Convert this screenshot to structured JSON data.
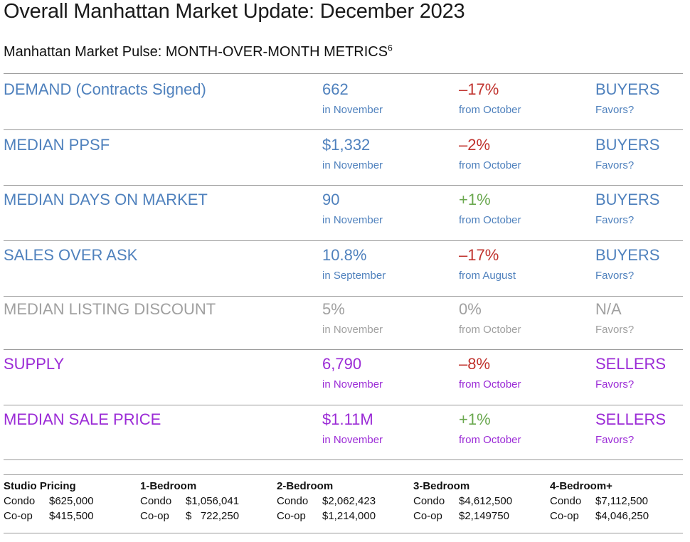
{
  "title": "Overall Manhattan Market Update: December 2023",
  "subtitle": {
    "text": "Manhattan Market Pulse: MONTH-OVER-MONTH METRICS",
    "footnote": "6"
  },
  "metrics": [
    {
      "label": "DEMAND (Contracts Signed)",
      "value": "662",
      "value_sub": "in November",
      "change": "–17%",
      "change_sub": "from October",
      "favors": "BUYERS",
      "favors_sub": "Favors?"
    },
    {
      "label": "MEDIAN PPSF",
      "value": "$1,332",
      "value_sub": "in November",
      "change": "–2%",
      "change_sub": "from October",
      "favors": "BUYERS",
      "favors_sub": "Favors?"
    },
    {
      "label": "MEDIAN DAYS ON MARKET",
      "value": "90",
      "value_sub": "in November",
      "change": "+1%",
      "change_sub": "from October",
      "favors": "BUYERS",
      "favors_sub": "Favors?"
    },
    {
      "label": "SALES OVER ASK",
      "value": "10.8%",
      "value_sub": "in September",
      "change": "–17%",
      "change_sub": "from August",
      "favors": "BUYERS",
      "favors_sub": "Favors?"
    },
    {
      "label": "MEDIAN LISTING DISCOUNT",
      "value": "5%",
      "value_sub": "in November",
      "change": "0%",
      "change_sub": "from October",
      "favors": "N/A",
      "favors_sub": "Favors?"
    },
    {
      "label": "SUPPLY",
      "value": "6,790",
      "value_sub": "in November",
      "change": "–8%",
      "change_sub": "from October",
      "favors": "SELLERS",
      "favors_sub": "Favors?"
    },
    {
      "label": "MEDIAN SALE PRICE",
      "value": "$1.11M",
      "value_sub": "in November",
      "change": "+1%",
      "change_sub": "from October",
      "favors": "SELLERS",
      "favors_sub": "Favors?"
    }
  ],
  "colors": {
    "buyers": "#4f81bd",
    "neutral": "#a0a0a0",
    "sellers": "#9b2bd6",
    "negative": "#c0332e",
    "positive": "#6aa84f"
  },
  "pricing": [
    {
      "header": "Studio Pricing",
      "rows": [
        {
          "type": "Condo",
          "price": "$625,000"
        },
        {
          "type": "Co-op",
          "price": "$415,500"
        }
      ]
    },
    {
      "header": "1-Bedroom",
      "rows": [
        {
          "type": "Condo",
          "price": "$1,056,041"
        },
        {
          "type": "Co-op",
          "price": "$   722,250"
        }
      ]
    },
    {
      "header": "2-Bedroom",
      "rows": [
        {
          "type": "Condo",
          "price": "$2,062,423"
        },
        {
          "type": "Co-op",
          "price": "$1,214,000"
        }
      ]
    },
    {
      "header": "3-Bedroom",
      "rows": [
        {
          "type": "Condo",
          "price": "$4,612,500"
        },
        {
          "type": "Co-op",
          "price": "$2,149750"
        }
      ]
    },
    {
      "header": "4-Bedroom+",
      "rows": [
        {
          "type": "Condo",
          "price": "$7,112,500"
        },
        {
          "type": "Co-op",
          "price": "$4,046,250"
        }
      ]
    }
  ]
}
